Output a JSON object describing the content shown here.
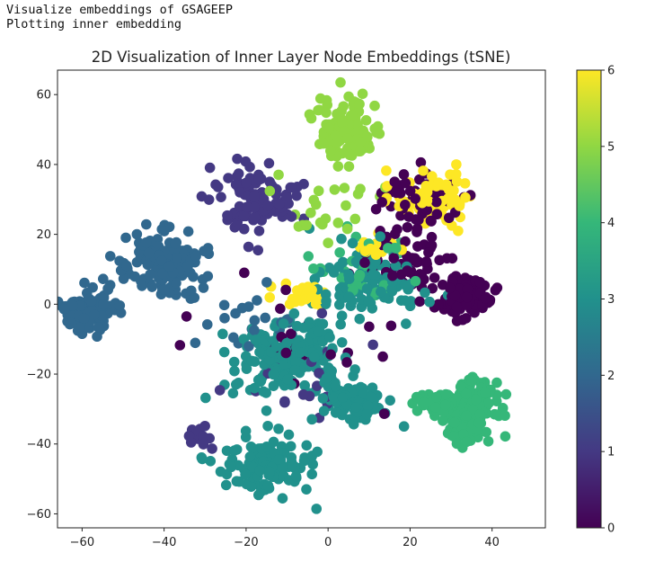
{
  "output": {
    "line1": "Visualize embeddings of GSAGEEP",
    "line2": "Plotting inner embedding"
  },
  "chart_data": {
    "type": "scatter",
    "title": "2D Visualization of Inner Layer Node Embeddings (tSNE)",
    "xlabel": "",
    "ylabel": "",
    "xlim": [
      -66,
      53
    ],
    "ylim": [
      -64,
      67
    ],
    "x_ticks": [
      -60,
      -40,
      -20,
      0,
      20,
      40
    ],
    "y_ticks": [
      -60,
      -40,
      -20,
      0,
      20,
      40,
      60
    ],
    "x_tick_labels": [
      "−60",
      "−40",
      "−20",
      "0",
      "20",
      "40"
    ],
    "y_tick_labels": [
      "−60",
      "−40",
      "−20",
      "0",
      "20",
      "40",
      "60"
    ],
    "grid": false,
    "colormap": "viridis",
    "colorbar": {
      "range": [
        0,
        6
      ],
      "ticks": [
        "0",
        "1",
        "2",
        "3",
        "4",
        "5",
        "6"
      ],
      "stops": [
        "#440154",
        "#443983",
        "#31688e",
        "#21918c",
        "#35b779",
        "#90d743",
        "#fde725"
      ]
    },
    "clusters": [
      {
        "label": 5,
        "center": [
          5,
          50
        ],
        "spread": [
          7,
          9
        ],
        "count": 110
      },
      {
        "label": 1,
        "center": [
          -18,
          30
        ],
        "spread": [
          8,
          9
        ],
        "count": 100
      },
      {
        "label": 2,
        "center": [
          -40,
          12
        ],
        "spread": [
          9,
          9
        ],
        "count": 150
      },
      {
        "label": 2,
        "center": [
          -58,
          -2
        ],
        "spread": [
          6,
          5
        ],
        "count": 110
      },
      {
        "label": 0,
        "center": [
          33,
          2
        ],
        "spread": [
          6,
          5
        ],
        "count": 100
      },
      {
        "label": 0,
        "center": [
          22,
          30
        ],
        "spread": [
          9,
          8
        ],
        "count": 70
      },
      {
        "label": 6,
        "center": [
          27,
          30
        ],
        "spread": [
          9,
          7
        ],
        "count": 70
      },
      {
        "label": 6,
        "center": [
          12,
          17
        ],
        "spread": [
          6,
          3
        ],
        "count": 25
      },
      {
        "label": 6,
        "center": [
          -6,
          3
        ],
        "spread": [
          6,
          3
        ],
        "count": 25
      },
      {
        "label": 3,
        "center": [
          -10,
          -15
        ],
        "spread": [
          12,
          10
        ],
        "count": 190
      },
      {
        "label": 3,
        "center": [
          -15,
          -45
        ],
        "spread": [
          10,
          8
        ],
        "count": 120
      },
      {
        "label": 3,
        "center": [
          6,
          -28
        ],
        "spread": [
          8,
          5
        ],
        "count": 80
      },
      {
        "label": 3,
        "center": [
          10,
          5
        ],
        "spread": [
          11,
          10
        ],
        "count": 110
      },
      {
        "label": 4,
        "center": [
          35,
          -30
        ],
        "spread": [
          7,
          9
        ],
        "count": 140
      },
      {
        "label": 4,
        "center": [
          26,
          -28
        ],
        "spread": [
          5,
          3
        ],
        "count": 35
      },
      {
        "label": 0,
        "center": [
          20,
          12
        ],
        "spread": [
          10,
          8
        ],
        "count": 55
      },
      {
        "label": 4,
        "center": [
          10,
          10
        ],
        "spread": [
          10,
          10
        ],
        "count": 40
      },
      {
        "label": 5,
        "center": [
          0,
          25
        ],
        "spread": [
          14,
          12
        ],
        "count": 25
      },
      {
        "label": 1,
        "center": [
          -2,
          -20
        ],
        "spread": [
          15,
          15
        ],
        "count": 20
      },
      {
        "label": 0,
        "center": [
          -5,
          -10
        ],
        "spread": [
          20,
          15
        ],
        "count": 20
      },
      {
        "label": 2,
        "center": [
          -20,
          -5
        ],
        "spread": [
          10,
          10
        ],
        "count": 20
      },
      {
        "label": 1,
        "center": [
          -32,
          -38
        ],
        "spread": [
          4,
          3
        ],
        "count": 14
      }
    ]
  }
}
